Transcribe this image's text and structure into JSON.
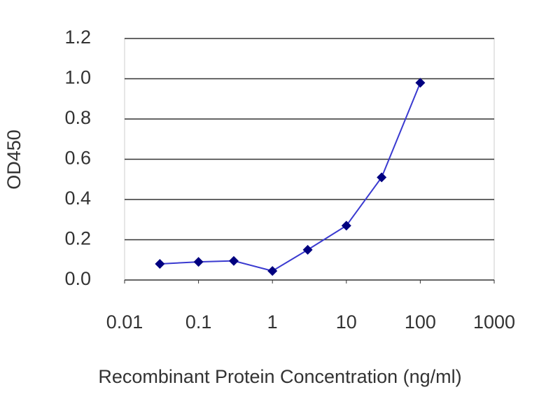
{
  "chart_data": {
    "type": "line",
    "xscale": "log",
    "grid": true,
    "xlabel": "Recombinant Protein Concentration (ng/ml)",
    "ylabel": "OD450",
    "x": [
      0.03,
      0.1,
      0.3,
      1,
      3,
      10,
      30,
      100
    ],
    "series": [
      {
        "color": "#000080",
        "values": [
          0.08,
          0.09,
          0.095,
          0.045,
          0.15,
          0.27,
          0.51,
          0.98
        ]
      }
    ],
    "xlim": [
      0.01,
      1000
    ],
    "xticks": [
      0.01,
      0.1,
      1,
      10,
      100,
      1000
    ],
    "ylim": [
      0,
      1.2
    ],
    "yticks": [
      {
        "value": 0,
        "label": "0.0"
      },
      0.2,
      0.4,
      0.6,
      0.8,
      {
        "value": 1,
        "label": "1.0"
      },
      1.2
    ]
  }
}
